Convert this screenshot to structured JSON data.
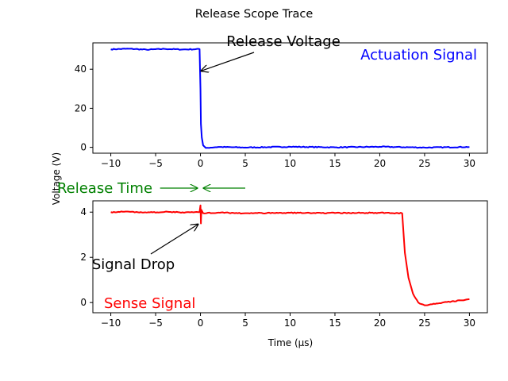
{
  "figure": {
    "title": "Release Scope Trace",
    "xlabel": "Time (μs)",
    "ylabel": "Voltage (V)"
  },
  "chart_data": [
    {
      "type": "line",
      "panel": "top",
      "series_label": "Actuation Signal",
      "color": "#0000ff",
      "xlim": [
        -12,
        32
      ],
      "ylim": [
        -3,
        53.5
      ],
      "x_ticks": [
        -10,
        -5,
        0,
        5,
        10,
        15,
        20,
        25,
        30
      ],
      "y_ticks": [
        0,
        20,
        40
      ],
      "grid": false,
      "trace": [
        {
          "x": -10,
          "y": 50.2
        },
        {
          "x": -8,
          "y": 50.5
        },
        {
          "x": -6,
          "y": 50.0
        },
        {
          "x": -4,
          "y": 50.4
        },
        {
          "x": -2,
          "y": 50.1
        },
        {
          "x": -0.1,
          "y": 50.3
        },
        {
          "x": 0,
          "y": 30
        },
        {
          "x": 0.05,
          "y": 12
        },
        {
          "x": 0.15,
          "y": 5
        },
        {
          "x": 0.3,
          "y": 1
        },
        {
          "x": 0.6,
          "y": -0.3
        },
        {
          "x": 2,
          "y": 0.2
        },
        {
          "x": 5,
          "y": -0.1
        },
        {
          "x": 10,
          "y": 0.3
        },
        {
          "x": 15,
          "y": 0.0
        },
        {
          "x": 20,
          "y": 0.3
        },
        {
          "x": 25,
          "y": -0.1
        },
        {
          "x": 30,
          "y": 0.2
        }
      ],
      "annotations": [
        {
          "text": "Release Voltage",
          "point": [
            0,
            39
          ]
        }
      ]
    },
    {
      "type": "line",
      "panel": "bottom",
      "series_label": "Sense Signal",
      "color": "#ff0000",
      "xlim": [
        -12,
        32
      ],
      "ylim": [
        -0.45,
        4.5
      ],
      "x_ticks": [
        -10,
        -5,
        0,
        5,
        10,
        15,
        20,
        25,
        30
      ],
      "y_ticks": [
        0,
        2,
        4
      ],
      "grid": false,
      "trace": [
        {
          "x": -10,
          "y": 4.0
        },
        {
          "x": -8,
          "y": 4.02
        },
        {
          "x": -6,
          "y": 3.98
        },
        {
          "x": -4,
          "y": 4.01
        },
        {
          "x": -2,
          "y": 3.99
        },
        {
          "x": -0.1,
          "y": 4.0
        },
        {
          "x": 0,
          "y": 4.3
        },
        {
          "x": 0.05,
          "y": 3.5
        },
        {
          "x": 0.1,
          "y": 4.1
        },
        {
          "x": 0.3,
          "y": 3.95
        },
        {
          "x": 2,
          "y": 3.98
        },
        {
          "x": 5,
          "y": 3.95
        },
        {
          "x": 10,
          "y": 3.97
        },
        {
          "x": 15,
          "y": 3.96
        },
        {
          "x": 20,
          "y": 3.97
        },
        {
          "x": 22.5,
          "y": 3.95
        },
        {
          "x": 22.8,
          "y": 2.2
        },
        {
          "x": 23.2,
          "y": 1.1
        },
        {
          "x": 23.7,
          "y": 0.4
        },
        {
          "x": 24.3,
          "y": 0.0
        },
        {
          "x": 25,
          "y": -0.12
        },
        {
          "x": 26,
          "y": -0.05
        },
        {
          "x": 27,
          "y": 0.0
        },
        {
          "x": 28,
          "y": 0.05
        },
        {
          "x": 29,
          "y": 0.1
        },
        {
          "x": 30,
          "y": 0.15
        }
      ],
      "annotations": [
        {
          "text": "Signal Drop",
          "point": [
            -0.2,
            3.48
          ]
        }
      ]
    }
  ],
  "release_time_marker": {
    "text": "Release Time",
    "color": "#008000",
    "point_time": 0,
    "arrow_tail_times": [
      -4.5,
      5
    ]
  }
}
